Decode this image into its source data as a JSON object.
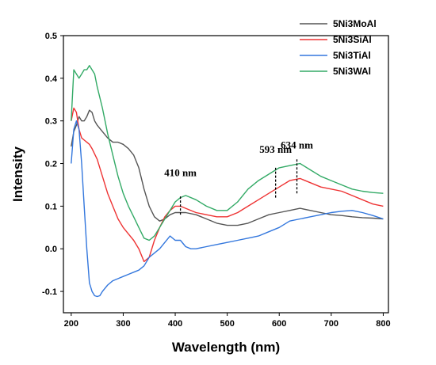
{
  "chart_data": {
    "type": "line",
    "xlabel": "Wavelength (nm)",
    "ylabel": "Intensity",
    "xlim": [
      185,
      810
    ],
    "ylim": [
      -0.15,
      0.5
    ],
    "xticks": [
      200,
      300,
      400,
      500,
      600,
      700,
      800
    ],
    "yticks": [
      -0.1,
      0.0,
      0.1,
      0.2,
      0.3,
      0.4,
      0.5
    ],
    "ytick_labels": [
      "-0.1",
      "0.0",
      "0.1",
      "0.2",
      "0.3",
      "0.4",
      "0.5"
    ],
    "legend_position": "top-right",
    "grid": false,
    "series": [
      {
        "name": "5Ni3MoAl",
        "color": "#555555",
        "x": [
          200,
          205,
          210,
          215,
          220,
          225,
          230,
          235,
          240,
          245,
          250,
          260,
          270,
          280,
          290,
          300,
          310,
          320,
          330,
          340,
          350,
          360,
          370,
          380,
          390,
          400,
          410,
          420,
          440,
          460,
          480,
          500,
          520,
          540,
          560,
          580,
          600,
          620,
          640,
          660,
          680,
          700,
          720,
          740,
          760,
          780,
          800
        ],
        "y": [
          0.24,
          0.275,
          0.29,
          0.31,
          0.3,
          0.3,
          0.31,
          0.325,
          0.32,
          0.3,
          0.29,
          0.275,
          0.26,
          0.25,
          0.25,
          0.245,
          0.235,
          0.22,
          0.19,
          0.14,
          0.1,
          0.075,
          0.065,
          0.07,
          0.08,
          0.085,
          0.085,
          0.085,
          0.08,
          0.07,
          0.06,
          0.055,
          0.055,
          0.06,
          0.07,
          0.08,
          0.085,
          0.09,
          0.095,
          0.09,
          0.085,
          0.08,
          0.078,
          0.075,
          0.073,
          0.072,
          0.07
        ]
      },
      {
        "name": "5Ni3SiAl",
        "color": "#ee3333",
        "x": [
          200,
          205,
          210,
          215,
          220,
          225,
          230,
          235,
          240,
          250,
          260,
          270,
          280,
          290,
          300,
          310,
          320,
          330,
          340,
          350,
          360,
          370,
          380,
          390,
          400,
          410,
          420,
          440,
          460,
          480,
          500,
          520,
          540,
          560,
          580,
          600,
          620,
          640,
          660,
          680,
          700,
          720,
          740,
          760,
          780,
          800
        ],
        "y": [
          0.3,
          0.33,
          0.32,
          0.28,
          0.26,
          0.255,
          0.25,
          0.245,
          0.235,
          0.21,
          0.17,
          0.13,
          0.1,
          0.07,
          0.05,
          0.035,
          0.02,
          0.0,
          -0.03,
          -0.02,
          0.02,
          0.05,
          0.075,
          0.09,
          0.1,
          0.1,
          0.095,
          0.085,
          0.08,
          0.075,
          0.075,
          0.085,
          0.1,
          0.115,
          0.13,
          0.145,
          0.16,
          0.165,
          0.155,
          0.145,
          0.14,
          0.135,
          0.125,
          0.115,
          0.105,
          0.1
        ]
      },
      {
        "name": "5Ni3TiAl",
        "color": "#3377dd",
        "x": [
          200,
          205,
          210,
          215,
          220,
          225,
          230,
          235,
          240,
          245,
          250,
          255,
          260,
          270,
          280,
          290,
          300,
          310,
          320,
          330,
          340,
          350,
          360,
          370,
          380,
          390,
          400,
          410,
          420,
          430,
          440,
          460,
          480,
          500,
          520,
          540,
          560,
          580,
          600,
          620,
          640,
          660,
          680,
          700,
          720,
          740,
          760,
          780,
          800
        ],
        "y": [
          0.2,
          0.28,
          0.3,
          0.28,
          0.2,
          0.1,
          0.0,
          -0.08,
          -0.1,
          -0.11,
          -0.112,
          -0.11,
          -0.1,
          -0.085,
          -0.075,
          -0.07,
          -0.065,
          -0.06,
          -0.055,
          -0.05,
          -0.04,
          -0.02,
          -0.01,
          0.0,
          0.015,
          0.03,
          0.02,
          0.02,
          0.005,
          0.0,
          0.0,
          0.005,
          0.01,
          0.015,
          0.02,
          0.025,
          0.03,
          0.04,
          0.05,
          0.065,
          0.07,
          0.075,
          0.08,
          0.085,
          0.088,
          0.09,
          0.085,
          0.078,
          0.07
        ]
      },
      {
        "name": "5Ni3WAl",
        "color": "#33aa66",
        "x": [
          200,
          205,
          210,
          215,
          220,
          225,
          230,
          235,
          240,
          245,
          250,
          260,
          270,
          280,
          290,
          300,
          310,
          320,
          330,
          340,
          350,
          360,
          370,
          380,
          390,
          400,
          410,
          420,
          440,
          460,
          480,
          500,
          520,
          540,
          560,
          580,
          600,
          620,
          640,
          660,
          680,
          700,
          720,
          740,
          760,
          780,
          800
        ],
        "y": [
          0.3,
          0.42,
          0.41,
          0.4,
          0.41,
          0.42,
          0.42,
          0.43,
          0.42,
          0.41,
          0.38,
          0.33,
          0.27,
          0.22,
          0.17,
          0.13,
          0.1,
          0.075,
          0.05,
          0.025,
          0.02,
          0.03,
          0.05,
          0.07,
          0.09,
          0.11,
          0.12,
          0.125,
          0.115,
          0.1,
          0.09,
          0.09,
          0.11,
          0.14,
          0.16,
          0.175,
          0.19,
          0.195,
          0.2,
          0.185,
          0.17,
          0.16,
          0.15,
          0.14,
          0.135,
          0.132,
          0.13
        ]
      }
    ],
    "annotations": [
      {
        "label": "410 nm",
        "x": 410,
        "line_from": 0.08,
        "line_to": 0.125,
        "text_at_y": 0.17
      },
      {
        "label": "593 nm",
        "x": 593,
        "line_from": 0.12,
        "line_to": 0.19,
        "text_at_y": 0.225
      },
      {
        "label": "634 nm",
        "x": 634,
        "line_from": 0.13,
        "line_to": 0.21,
        "text_at_y": 0.235
      }
    ]
  }
}
